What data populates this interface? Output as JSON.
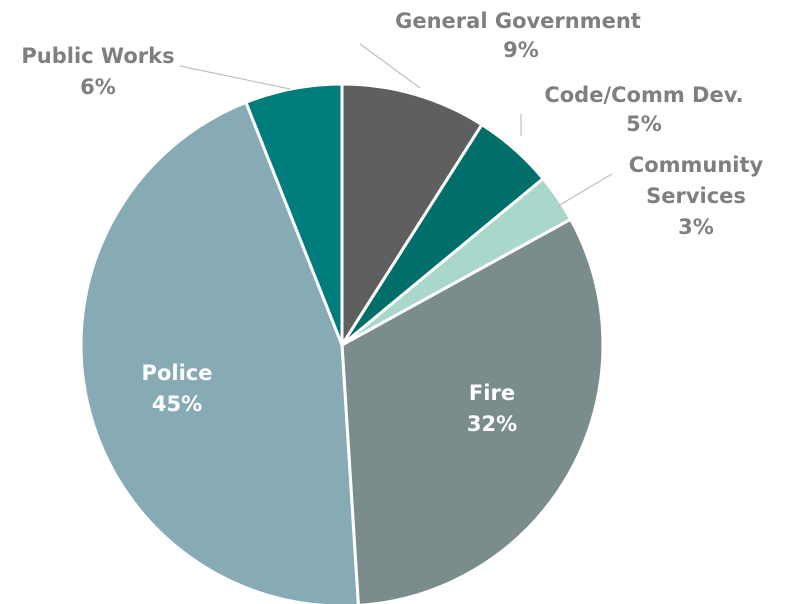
{
  "chart_data": {
    "type": "pie",
    "title": "",
    "slices": [
      {
        "name": "General Government",
        "value": 9,
        "label": "9%",
        "color": "#5f5f5f"
      },
      {
        "name": "Code/Comm Dev.",
        "value": 5,
        "label": "5%",
        "color": "#006f6a"
      },
      {
        "name": "Community Services",
        "value": 3,
        "label": "3%",
        "color": "#a9d7cb"
      },
      {
        "name": "Fire",
        "value": 32,
        "label": "32%",
        "color": "#7b8c8c"
      },
      {
        "name": "Police",
        "value": 45,
        "label": "45%",
        "color": "#86abb5"
      },
      {
        "name": "Public Works",
        "value": 6,
        "label": "6%",
        "color": "#007c7c"
      }
    ],
    "label_color_outside": "#7f7f7f",
    "label_color_inside": "#ffffff",
    "leader_line_color": "#bfbfbf",
    "legend": "none"
  }
}
